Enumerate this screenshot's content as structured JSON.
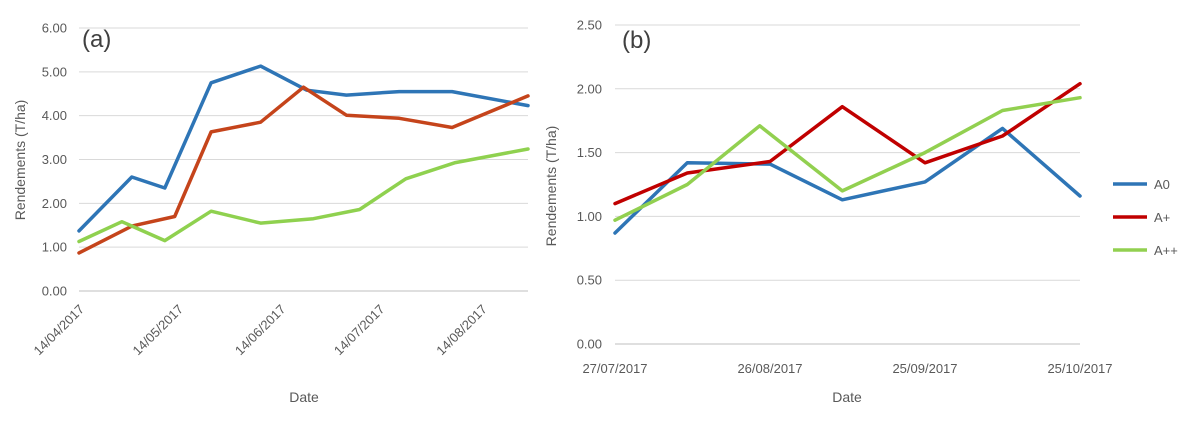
{
  "chart_data": [
    {
      "panel": "(a)",
      "type": "line",
      "xlabel": "Date",
      "ylabel": "Rendements  (T/ha)",
      "ylim": [
        0,
        6
      ],
      "yticks": [
        "0.00",
        "1.00",
        "2.00",
        "3.00",
        "4.00",
        "5.00",
        "6.00"
      ],
      "xticks": [
        {
          "label": "14/04/2017",
          "x": "2017-04-14"
        },
        {
          "label": "14/05/2017",
          "x": "2017-05-14"
        },
        {
          "label": "14/06/2017",
          "x": "2017-06-14"
        },
        {
          "label": "14/07/2017",
          "x": "2017-07-14"
        },
        {
          "label": "14/08/2017",
          "x": "2017-08-14"
        }
      ],
      "xlim": [
        "2017-04-14",
        "2017-08-28"
      ],
      "grid": "horizontal",
      "series": [
        {
          "color": "#2E75B6",
          "x": [
            "2017-04-14",
            "2017-04-30",
            "2017-05-10",
            "2017-05-24",
            "2017-06-08",
            "2017-06-22",
            "2017-07-04",
            "2017-07-20",
            "2017-08-05",
            "2017-08-28"
          ],
          "values": [
            1.37,
            2.6,
            2.35,
            4.75,
            5.13,
            4.58,
            4.47,
            4.55,
            4.55,
            4.23
          ]
        },
        {
          "color": "#C5441B",
          "x": [
            "2017-04-14",
            "2017-04-30",
            "2017-05-13",
            "2017-05-24",
            "2017-06-08",
            "2017-06-21",
            "2017-07-04",
            "2017-07-20",
            "2017-08-05",
            "2017-08-28"
          ],
          "values": [
            0.87,
            1.48,
            1.7,
            3.63,
            3.85,
            4.65,
            4.01,
            3.94,
            3.73,
            4.45
          ]
        },
        {
          "color": "#8FD14F",
          "x": [
            "2017-04-14",
            "2017-04-27",
            "2017-05-10",
            "2017-05-24",
            "2017-06-08",
            "2017-06-24",
            "2017-07-08",
            "2017-07-22",
            "2017-08-06",
            "2017-08-28"
          ],
          "values": [
            1.13,
            1.58,
            1.15,
            1.82,
            1.55,
            1.65,
            1.86,
            2.56,
            2.93,
            3.24
          ]
        }
      ]
    },
    {
      "panel": "(b)",
      "type": "line",
      "xlabel": "Date",
      "ylabel": "Rendements  (T/ha)",
      "ylim": [
        0,
        2.5
      ],
      "yticks": [
        "0.00",
        "0.50",
        "1.00",
        "1.50",
        "2.00",
        "2.50"
      ],
      "xticks": [
        {
          "label": "27/07/2017",
          "x": "2017-07-27"
        },
        {
          "label": "26/08/2017",
          "x": "2017-08-26"
        },
        {
          "label": "25/09/2017",
          "x": "2017-09-25"
        },
        {
          "label": "25/10/2017",
          "x": "2017-10-25"
        }
      ],
      "xlim": [
        "2017-07-27",
        "2017-10-25"
      ],
      "grid": "horizontal",
      "legend": "right",
      "series": [
        {
          "name": "A0",
          "color": "#2E75B6",
          "x": [
            "2017-07-27",
            "2017-08-10",
            "2017-08-26",
            "2017-09-09",
            "2017-09-25",
            "2017-10-10",
            "2017-10-25"
          ],
          "values": [
            0.87,
            1.42,
            1.41,
            1.13,
            1.27,
            1.69,
            1.16
          ]
        },
        {
          "name": "A+",
          "color": "#C00000",
          "x": [
            "2017-07-27",
            "2017-08-10",
            "2017-08-26",
            "2017-09-09",
            "2017-09-25",
            "2017-10-10",
            "2017-10-25"
          ],
          "values": [
            1.1,
            1.34,
            1.43,
            1.86,
            1.42,
            1.63,
            2.04
          ]
        },
        {
          "name": "A++",
          "color": "#92D050",
          "x": [
            "2017-07-27",
            "2017-08-10",
            "2017-08-24",
            "2017-09-09",
            "2017-09-25",
            "2017-10-10",
            "2017-10-25"
          ],
          "values": [
            0.97,
            1.25,
            1.71,
            1.2,
            1.5,
            1.83,
            1.93
          ]
        }
      ]
    }
  ]
}
